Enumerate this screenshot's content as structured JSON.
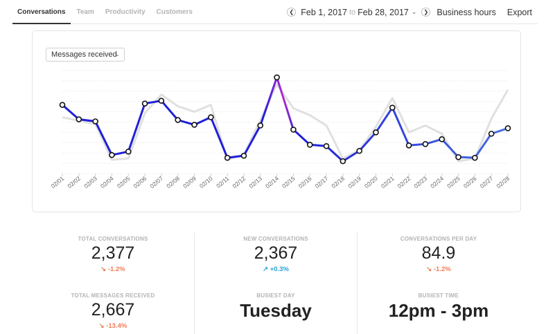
{
  "tabs": [
    {
      "label": "Conversations",
      "active": true
    },
    {
      "label": "Team",
      "active": false
    },
    {
      "label": "Productivity",
      "active": false
    },
    {
      "label": "Customers",
      "active": false
    }
  ],
  "date_range": {
    "prev_icon": "chevron-left-icon",
    "next_icon": "chevron-right-icon",
    "start": "Feb 1, 2017",
    "connector": "to",
    "end": "Feb 28, 2017",
    "business_hours_label": "Business hours",
    "export_label": "Export"
  },
  "metric_select": {
    "value": "Messages received"
  },
  "colors": {
    "line_start": "#1f1fd8",
    "line_end": "#4a6fe0",
    "peak": "#b52bd1",
    "previous_period": "#e0e0e0"
  },
  "chart_data": {
    "type": "line",
    "x": [
      "02/01",
      "02/02",
      "02/03",
      "02/04",
      "02/05",
      "02/06",
      "02/07",
      "02/08",
      "02/09",
      "02/10",
      "02/11",
      "02/12",
      "02/13",
      "02/14",
      "02/15",
      "02/16",
      "02/17",
      "02/18",
      "02/19",
      "02/20",
      "02/21",
      "02/22",
      "02/23",
      "02/24",
      "02/25",
      "02/26",
      "02/27",
      "02/28"
    ],
    "series": [
      {
        "values": [
          100,
          79,
          76,
          27,
          32,
          102,
          106,
          78,
          71,
          82,
          23,
          26,
          70,
          140,
          64,
          42,
          40,
          18,
          33,
          60,
          96,
          41,
          43,
          50,
          24,
          23,
          58,
          66
        ]
      },
      {
        "values": [
          82,
          77,
          72,
          20,
          22,
          88,
          115,
          98,
          90,
          100,
          20,
          28,
          78,
          130,
          95,
          85,
          70,
          22,
          34,
          68,
          110,
          60,
          70,
          58,
          18,
          22,
          80,
          122
        ]
      }
    ],
    "ylim": [
      0,
      150
    ],
    "grid": true
  },
  "stats": {
    "total_conversations": {
      "label": "TOTAL CONVERSATIONS",
      "value": "2,377",
      "change": "↘ -1.2%",
      "direction": "down"
    },
    "new_conversations": {
      "label": "NEW CONVERSATIONS",
      "value": "2,367",
      "change": "↗ +0.3%",
      "direction": "up"
    },
    "conversations_per_day": {
      "label": "CONVERSATIONS PER DAY",
      "value": "84.9",
      "change": "↘ -1.2%",
      "direction": "down"
    },
    "total_messages_received": {
      "label": "TOTAL MESSAGES RECEIVED",
      "value": "2,667",
      "change": "↘ -13.4%",
      "direction": "down"
    },
    "busiest_day": {
      "label": "BUSIEST DAY",
      "value": "Tuesday"
    },
    "busiest_time": {
      "label": "BUSIEST TIME",
      "value": "12pm - 3pm"
    }
  }
}
